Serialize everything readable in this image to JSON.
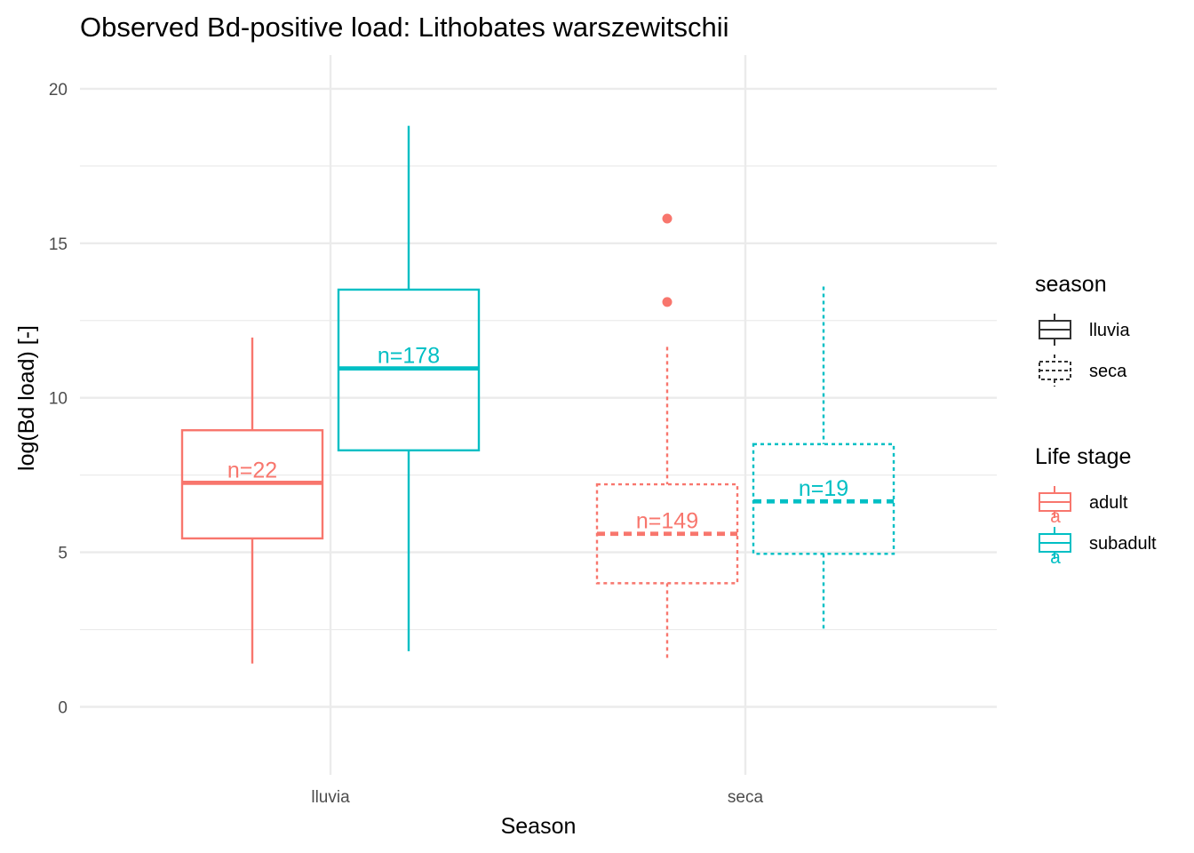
{
  "chart_data": {
    "type": "box",
    "title": "Observed Bd-positive load: Lithobates warszewitschii",
    "xlabel": "Season",
    "ylabel": "log(Bd load) [-]",
    "categories": [
      "lluvia",
      "seca"
    ],
    "ylim": [
      -2.2,
      21
    ],
    "yticks": [
      0,
      5,
      10,
      15,
      20
    ],
    "grid": true,
    "legend_position": "right",
    "colors": {
      "adult": "#F8766D",
      "subadult": "#00BFC4",
      "legend_neutral": "#333333",
      "grid": "#ebebeb"
    },
    "series": [
      {
        "name": "adult",
        "category": "lluvia",
        "linetype": "solid",
        "whisker_low": 1.4,
        "q1": 5.45,
        "median": 7.25,
        "q3": 8.95,
        "whisker_high": 11.95,
        "outliers": [],
        "n_label": "n=22"
      },
      {
        "name": "subadult",
        "category": "lluvia",
        "linetype": "solid",
        "whisker_low": 1.8,
        "q1": 8.3,
        "median": 10.95,
        "q3": 13.5,
        "whisker_high": 18.8,
        "outliers": [],
        "n_label": "n=178"
      },
      {
        "name": "adult",
        "category": "seca",
        "linetype": "dashed",
        "whisker_low": 1.55,
        "q1": 4.0,
        "median": 5.6,
        "q3": 7.2,
        "whisker_high": 11.65,
        "outliers": [
          13.1,
          15.8
        ],
        "n_label": "n=149"
      },
      {
        "name": "subadult",
        "category": "seca",
        "linetype": "dashed",
        "whisker_low": 2.5,
        "q1": 4.95,
        "median": 6.65,
        "q3": 8.5,
        "whisker_high": 13.6,
        "outliers": [],
        "n_label": "n=19"
      }
    ],
    "legends": [
      {
        "title": "season",
        "items": [
          {
            "label": "lluvia",
            "linetype": "solid"
          },
          {
            "label": "seca",
            "linetype": "dashed"
          }
        ]
      },
      {
        "title": "Life stage",
        "items": [
          {
            "label": "adult",
            "key": "adult"
          },
          {
            "label": "subadult",
            "key": "subadult"
          }
        ]
      }
    ],
    "legend_key_glyph": "a"
  }
}
